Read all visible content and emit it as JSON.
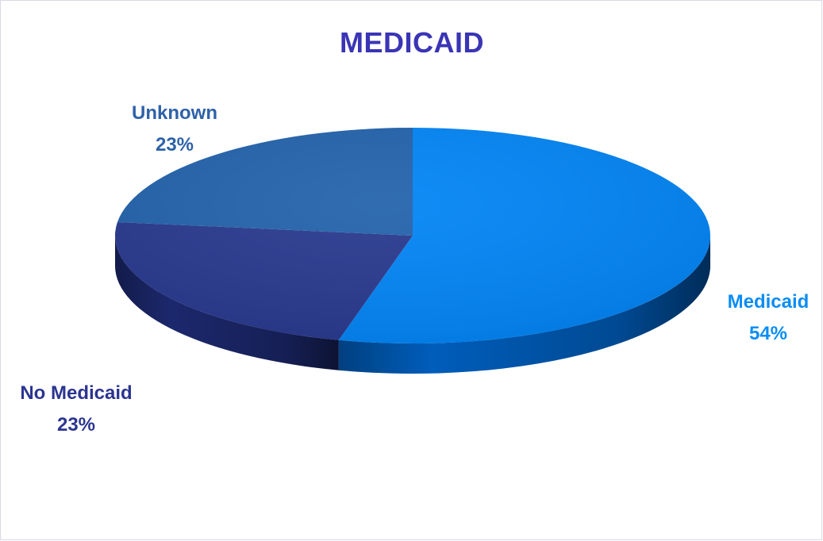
{
  "chart_data": {
    "type": "pie",
    "title": "MEDICAID",
    "slices": [
      {
        "label": "Medicaid",
        "value": 54,
        "value_label": "54%",
        "color": "#0385f5",
        "side_color": "#0062c4",
        "label_color": "#0a8df5"
      },
      {
        "label": "No Medicaid",
        "value": 23,
        "value_label": "23%",
        "color": "#293a8f",
        "side_color": "#1d2a72",
        "label_color": "#2b3590"
      },
      {
        "label": "Unknown",
        "value": 23,
        "value_label": "23%",
        "color": "#2463ac",
        "side_color": "#1b4f8c",
        "label_color": "#2e62a8"
      }
    ],
    "title_color": "#3a35b5",
    "legend": "none",
    "style": "3d-pie"
  }
}
